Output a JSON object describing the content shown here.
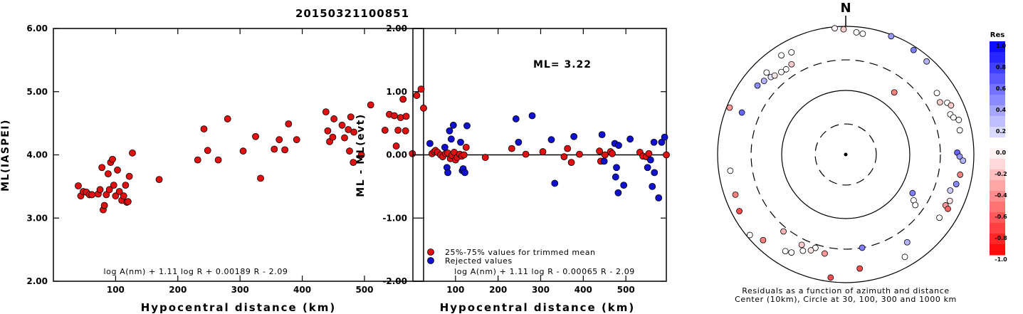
{
  "figure_title": "20150321100851",
  "chart_data": [
    {
      "type": "scatter",
      "xlabel": "Hypocentral distance (km)",
      "ylabel": "ML(IASPEI)",
      "xlim": [
        0,
        595
      ],
      "ylim": [
        2.0,
        6.0
      ],
      "x_ticks": [
        "100",
        "200",
        "300",
        "400",
        "500"
      ],
      "y_ticks": [
        "2.00",
        "3.00",
        "4.00",
        "5.00",
        "6.00"
      ],
      "formula": "log A(nm) + 1.11 log R + 0.00189 R - 2.09",
      "point_color": "#e01010",
      "points": [
        [
          40,
          3.51
        ],
        [
          44,
          3.35
        ],
        [
          48,
          3.42
        ],
        [
          53,
          3.41
        ],
        [
          58,
          3.37
        ],
        [
          62,
          3.37
        ],
        [
          72,
          3.38
        ],
        [
          75,
          3.45
        ],
        [
          78,
          3.8
        ],
        [
          80,
          3.13
        ],
        [
          82,
          3.2
        ],
        [
          85,
          3.37
        ],
        [
          88,
          3.7
        ],
        [
          90,
          3.45
        ],
        [
          92,
          3.88
        ],
        [
          95,
          3.93
        ],
        [
          97,
          3.52
        ],
        [
          100,
          3.35
        ],
        [
          103,
          3.76
        ],
        [
          106,
          3.42
        ],
        [
          110,
          3.28
        ],
        [
          113,
          3.35
        ],
        [
          116,
          3.52
        ],
        [
          118,
          3.25
        ],
        [
          120,
          3.26
        ],
        [
          122,
          3.66
        ],
        [
          127,
          4.03
        ],
        [
          170,
          3.61
        ],
        [
          232,
          3.92
        ],
        [
          242,
          4.41
        ],
        [
          248,
          4.07
        ],
        [
          265,
          3.92
        ],
        [
          280,
          4.57
        ],
        [
          305,
          4.06
        ],
        [
          325,
          4.29
        ],
        [
          333,
          3.63
        ],
        [
          355,
          4.09
        ],
        [
          363,
          4.24
        ],
        [
          372,
          4.08
        ],
        [
          378,
          4.49
        ],
        [
          391,
          4.24
        ],
        [
          438,
          4.68
        ],
        [
          441,
          4.38
        ],
        [
          444,
          4.21
        ],
        [
          449,
          4.28
        ],
        [
          451,
          4.57
        ],
        [
          464,
          4.47
        ],
        [
          468,
          4.27
        ],
        [
          474,
          4.4
        ],
        [
          476,
          4.06
        ],
        [
          478,
          4.6
        ],
        [
          482,
          3.88
        ],
        [
          483,
          4.36
        ],
        [
          495,
          4.0
        ],
        [
          510,
          4.79
        ],
        [
          533,
          4.39
        ],
        [
          540,
          4.64
        ],
        [
          548,
          4.62
        ],
        [
          551,
          4.14
        ],
        [
          554,
          4.39
        ],
        [
          558,
          4.59
        ],
        [
          562,
          4.88
        ],
        [
          566,
          4.38
        ],
        [
          567,
          4.61
        ],
        [
          577,
          4.02
        ],
        [
          584,
          4.94
        ],
        [
          591,
          5.04
        ],
        [
          595,
          4.74
        ]
      ]
    },
    {
      "type": "scatter",
      "xlabel": "Hypocentral distance (km)",
      "ylabel": "ML - ML(evt)",
      "xlim": [
        0,
        595
      ],
      "ylim": [
        -2.0,
        2.0
      ],
      "x_ticks": [
        "100",
        "200",
        "300",
        "400",
        "500"
      ],
      "y_ticks": [
        "-2.00",
        "-1.00",
        "0.00",
        "1.00",
        "2.00"
      ],
      "annotation": "ML= 3.22",
      "formula": "log A(nm) + 1.11 log R - 0.00065 R - 2.09",
      "legend": [
        {
          "label": "25%-75% values for trimmed mean",
          "color": "#e01010"
        },
        {
          "label": "Rejected values",
          "color": "#1010d0"
        }
      ],
      "series": [
        {
          "name": "25%-75% values for trimmed mean",
          "color": "#e01010",
          "points": [
            [
              45,
              0.02
            ],
            [
              50,
              0.05
            ],
            [
              53,
              0.07
            ],
            [
              58,
              0.04
            ],
            [
              65,
              0.0
            ],
            [
              70,
              -0.03
            ],
            [
              77,
              0.02
            ],
            [
              82,
              0.03
            ],
            [
              88,
              -0.06
            ],
            [
              92,
              -0.01
            ],
            [
              97,
              0.04
            ],
            [
              100,
              -0.08
            ],
            [
              104,
              -0.04
            ],
            [
              110,
              0.01
            ],
            [
              115,
              -0.02
            ],
            [
              120,
              0.0
            ],
            [
              125,
              0.12
            ],
            [
              170,
              -0.04
            ],
            [
              232,
              0.1
            ],
            [
              265,
              0.01
            ],
            [
              305,
              0.05
            ],
            [
              355,
              -0.03
            ],
            [
              363,
              0.1
            ],
            [
              372,
              -0.12
            ],
            [
              391,
              0.01
            ],
            [
              438,
              0.06
            ],
            [
              441,
              -0.1
            ],
            [
              451,
              0.0
            ],
            [
              464,
              0.05
            ],
            [
              468,
              0.02
            ],
            [
              533,
              0.04
            ],
            [
              540,
              -0.02
            ],
            [
              548,
              -0.03
            ],
            [
              554,
              0.02
            ],
            [
              595,
              0.0
            ]
          ]
        },
        {
          "name": "Rejected values",
          "color": "#1010d0",
          "points": [
            [
              40,
              0.18
            ],
            [
              75,
              0.12
            ],
            [
              80,
              -0.2
            ],
            [
              82,
              -0.28
            ],
            [
              86,
              0.38
            ],
            [
              90,
              0.25
            ],
            [
              95,
              0.47
            ],
            [
              112,
              0.2
            ],
            [
              116,
              -0.25
            ],
            [
              118,
              -0.22
            ],
            [
              122,
              -0.28
            ],
            [
              127,
              0.46
            ],
            [
              242,
              0.57
            ],
            [
              248,
              0.2
            ],
            [
              280,
              0.62
            ],
            [
              325,
              0.24
            ],
            [
              333,
              -0.45
            ],
            [
              378,
              0.29
            ],
            [
              444,
              0.32
            ],
            [
              449,
              -0.1
            ],
            [
              474,
              0.18
            ],
            [
              476,
              -0.35
            ],
            [
              478,
              -0.2
            ],
            [
              482,
              -0.6
            ],
            [
              483,
              0.15
            ],
            [
              495,
              -0.48
            ],
            [
              510,
              0.25
            ],
            [
              551,
              -0.2
            ],
            [
              558,
              -0.08
            ],
            [
              562,
              -0.5
            ],
            [
              566,
              0.2
            ],
            [
              567,
              -0.28
            ],
            [
              577,
              -0.68
            ],
            [
              584,
              0.2
            ],
            [
              591,
              0.28
            ]
          ]
        }
      ]
    },
    {
      "type": "polar_scatter",
      "north_label": "N",
      "center_note": "Center (10km), Circle at 30, 100, 300 and 1000 km",
      "caption": "Residuals as a function of azimuth and distance",
      "circles_km": [
        10,
        30,
        100,
        300,
        1000
      ],
      "points": [
        {
          "az": -68,
          "dist": 900,
          "res": -0.4
        },
        {
          "az": -52,
          "dist": 560,
          "res": 0.45
        },
        {
          "az": -48,
          "dist": 520,
          "res": 0.3
        },
        {
          "az": -44,
          "dist": 480,
          "res": 0.1
        },
        {
          "az": -42,
          "dist": 455,
          "res": -0.1
        },
        {
          "az": -38,
          "dist": 430,
          "res": 0.0
        },
        {
          "az": -35,
          "dist": 420,
          "res": 0.0
        },
        {
          "az": -31,
          "dist": 440,
          "res": -0.2
        },
        {
          "az": -33,
          "dist": 700,
          "res": 0.0
        },
        {
          "az": -44,
          "dist": 600,
          "res": 0.0
        },
        {
          "az": -28,
          "dist": 640,
          "res": 0.0
        },
        {
          "az": -5,
          "dist": 950,
          "res": -0.05
        },
        {
          "az": -1,
          "dist": 900,
          "res": -0.2
        },
        {
          "az": 5,
          "dist": 820,
          "res": 0.0
        },
        {
          "az": 8,
          "dist": 800,
          "res": 0.0
        },
        {
          "az": 21,
          "dist": 950,
          "res": 0.4
        },
        {
          "az": 33,
          "dist": 880,
          "res": 0.5
        },
        {
          "az": 41,
          "dist": 840,
          "res": 0.3
        },
        {
          "az": 38,
          "dist": 170,
          "res": -0.5
        },
        {
          "az": 56,
          "dist": 520,
          "res": 0.0
        },
        {
          "az": 61,
          "dist": 480,
          "res": -0.2
        },
        {
          "az": 63,
          "dist": 600,
          "res": 0.0
        },
        {
          "az": 65,
          "dist": 650,
          "res": -0.2
        },
        {
          "az": 69,
          "dist": 560,
          "res": 0.0
        },
        {
          "az": 71,
          "dist": 600,
          "res": 0.0
        },
        {
          "az": 73,
          "dist": 700,
          "res": 0.0
        },
        {
          "az": 78,
          "dist": 660,
          "res": 0.0
        },
        {
          "az": 89,
          "dist": 550,
          "res": 0.6
        },
        {
          "az": 91,
          "dist": 600,
          "res": 0.4
        },
        {
          "az": 93,
          "dist": 680,
          "res": 0.3
        },
        {
          "az": 100,
          "dist": 650,
          "res": -0.5
        },
        {
          "az": 105,
          "dist": 610,
          "res": 0.45
        },
        {
          "az": 109,
          "dist": 530,
          "res": 0.2
        },
        {
          "az": 114,
          "dist": 600,
          "res": -0.1
        },
        {
          "az": 117,
          "dist": 560,
          "res": -0.4
        },
        {
          "az": 118,
          "dist": 640,
          "res": -0.6
        },
        {
          "az": 124,
          "dist": 580,
          "res": 0.0
        },
        {
          "az": 120,
          "dist": 160,
          "res": 0.5
        },
        {
          "az": 124,
          "dist": 190,
          "res": 0.0
        },
        {
          "az": 126,
          "dist": 220,
          "res": 0.0
        },
        {
          "az": 145,
          "dist": 470,
          "res": 0.3
        },
        {
          "az": 150,
          "dist": 700,
          "res": 0.0
        },
        {
          "az": 170,
          "dist": 300,
          "res": 0.5
        },
        {
          "az": 173,
          "dist": 620,
          "res": -0.7
        },
        {
          "az": 187,
          "dist": 860,
          "res": -0.7
        },
        {
          "az": 192,
          "dist": 380,
          "res": -0.4
        },
        {
          "az": 198,
          "dist": 340,
          "res": 0.0
        },
        {
          "az": 200,
          "dist": 390,
          "res": -0.1
        },
        {
          "az": 204,
          "dist": 440,
          "res": 0.0
        },
        {
          "az": 206,
          "dist": 370,
          "res": -0.2
        },
        {
          "az": 209,
          "dist": 560,
          "res": 0.0
        },
        {
          "az": 212,
          "dist": 600,
          "res": 0.0
        },
        {
          "az": 219,
          "dist": 350,
          "res": -0.3
        },
        {
          "az": 224,
          "dist": 720,
          "res": -0.5
        },
        {
          "az": 230,
          "dist": 900,
          "res": 0.0
        },
        {
          "az": 242,
          "dist": 760,
          "res": -0.7
        },
        {
          "az": 250,
          "dist": 680,
          "res": -0.5
        },
        {
          "az": 262,
          "dist": 660,
          "res": 0.0
        },
        {
          "az": 292,
          "dist": 560,
          "res": 0.6
        }
      ]
    }
  ],
  "colorbar": {
    "title": "Res",
    "labels": [
      "1.0",
      "0.8",
      "0.6",
      "0.4",
      "0.2",
      "0.0",
      "-0.2",
      "-0.4",
      "-0.6",
      "-0.8",
      "-1.0"
    ],
    "positive_color": "#0000ff",
    "negative_color": "#ff0000"
  }
}
